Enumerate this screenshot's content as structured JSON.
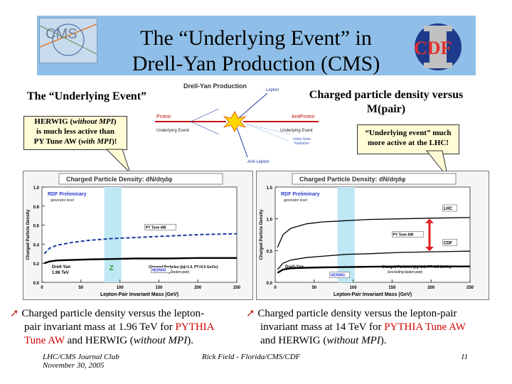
{
  "slide": {
    "title_line1": "The “Underlying Event” in",
    "title_line2": "Drell-Yan Production (CMS)",
    "cms_logo_text": "CMS",
    "cdf_logo_text": "CDF",
    "left_heading": "The “Underlying Event”",
    "right_heading_line1": "Charged particle density versus",
    "right_heading_line2": "M(pair)",
    "left_callout": {
      "line1_a": "HERWIG (",
      "line1_em": "without MPI",
      "line1_b": ")",
      "line2": "is much less active than",
      "line3_a": "PY Tune AW (",
      "line3_em": "with MPI",
      "line3_b": ")!"
    },
    "right_callout": {
      "line1": "“Underlying event” much",
      "line2": "more active at the LHC!"
    },
    "diagram": {
      "title": "Drell-Yan Production",
      "lepton": "Lepton",
      "anti_lepton": "Anti-Lepton",
      "proton": "Proton",
      "anti_proton": "AntiProton",
      "ue_left": "Underlying Event",
      "ue_right": "Underlying Event",
      "isr_line1": "Initial-State",
      "isr_line2": "Radiation"
    },
    "bullet_left": {
      "text_a": "Charged particle density versus the lepton-",
      "text_b": "pair invariant mass at 1.96 TeV for ",
      "red_a": "PYTHIA",
      "red_b": "Tune AW",
      "text_c": " and  HERWIG (",
      "em": "without MPI",
      "text_d": ")."
    },
    "bullet_right": {
      "text_a": "Charged particle density versus the lepton-pair",
      "text_b": "invariant mass at 14 TeV for ",
      "red": "PYTHIA Tune AW",
      "text_c": "and  HERWIG (",
      "em": "without MPI",
      "text_d": ")."
    },
    "footer": {
      "left_line1": "LHC/CMS Journal Club",
      "left_line2": "November 30, 2005",
      "center": "Rick Field - Florida/CMS/CDF",
      "page": "11"
    }
  },
  "chart_data": [
    {
      "type": "line",
      "title": "Charged Particle Density: dN/dηdφ",
      "xlabel": "Lepton-Pair Invariant Mass (GeV)",
      "ylabel": "Charged Particle Density",
      "xlim": [
        0,
        250
      ],
      "ylim": [
        0,
        1.0
      ],
      "x_ticks": [
        "0",
        "50",
        "100",
        "150",
        "200",
        "250"
      ],
      "y_ticks": [
        "0.0",
        "0.2",
        "0.4",
        "0.6",
        "0.8",
        "1.0"
      ],
      "annotation_title": "RDF Preliminary",
      "annotation_sub": "generator level",
      "label_left_1": "Drell-Yan",
      "label_left_2": "1.96 TeV",
      "cuts_1": "Charged Particles (|η|<1.0, PT>0.5 GeV/c)",
      "cuts_2": "(excluding lepton-pair)",
      "z_label": "Z",
      "series": [
        {
          "name": "PY Tune AW",
          "x": [
            3,
            10,
            20,
            40,
            60,
            91,
            120,
            160,
            200,
            250
          ],
          "y": [
            0.3,
            0.36,
            0.39,
            0.42,
            0.44,
            0.46,
            0.47,
            0.485,
            0.5,
            0.51
          ]
        },
        {
          "name": "HERWIG",
          "x": [
            3,
            10,
            20,
            40,
            60,
            91,
            120,
            160,
            200,
            250
          ],
          "y": [
            0.2,
            0.22,
            0.23,
            0.235,
            0.24,
            0.245,
            0.25,
            0.25,
            0.255,
            0.255
          ]
        }
      ]
    },
    {
      "type": "line",
      "title": "Charged Particle Density: dN/dηdφ",
      "xlabel": "Lepton-Pair Invariant Mass (GeV)",
      "ylabel": "Charged Particle Density",
      "xlim": [
        0,
        250
      ],
      "ylim": [
        0,
        1.5
      ],
      "x_ticks": [
        "0",
        "50",
        "100",
        "150",
        "200",
        "250"
      ],
      "y_ticks": [
        "0.0",
        "0.5",
        "1.0",
        "1.5"
      ],
      "annotation_title": "RDF Preliminary",
      "annotation_sub": "generator level",
      "label_left_1": "Drell-Yan",
      "cuts_1": "Charged Particles (|η|<1.0, PT>0.5 GeV/c)",
      "cuts_2": "(excluding lepton-pair)",
      "series": [
        {
          "name": "LHC",
          "x": [
            3,
            10,
            20,
            40,
            60,
            91,
            120,
            160,
            200,
            250
          ],
          "y": [
            0.55,
            0.75,
            0.85,
            0.92,
            0.95,
            0.97,
            0.99,
            1.0,
            1.01,
            1.02
          ]
        },
        {
          "name": "CDF",
          "x": [
            3,
            10,
            20,
            40,
            60,
            91,
            120,
            160,
            200,
            250
          ],
          "y": [
            0.2,
            0.3,
            0.35,
            0.39,
            0.41,
            0.44,
            0.45,
            0.47,
            0.48,
            0.49
          ]
        },
        {
          "name": "HERWIG",
          "x": [
            3,
            10,
            20,
            40,
            60,
            91,
            120,
            160,
            200,
            250
          ],
          "y": [
            0.15,
            0.2,
            0.22,
            0.23,
            0.235,
            0.24,
            0.245,
            0.25,
            0.25,
            0.25
          ]
        },
        {
          "name": "PY Tune AW",
          "x": [],
          "y": []
        }
      ]
    }
  ]
}
